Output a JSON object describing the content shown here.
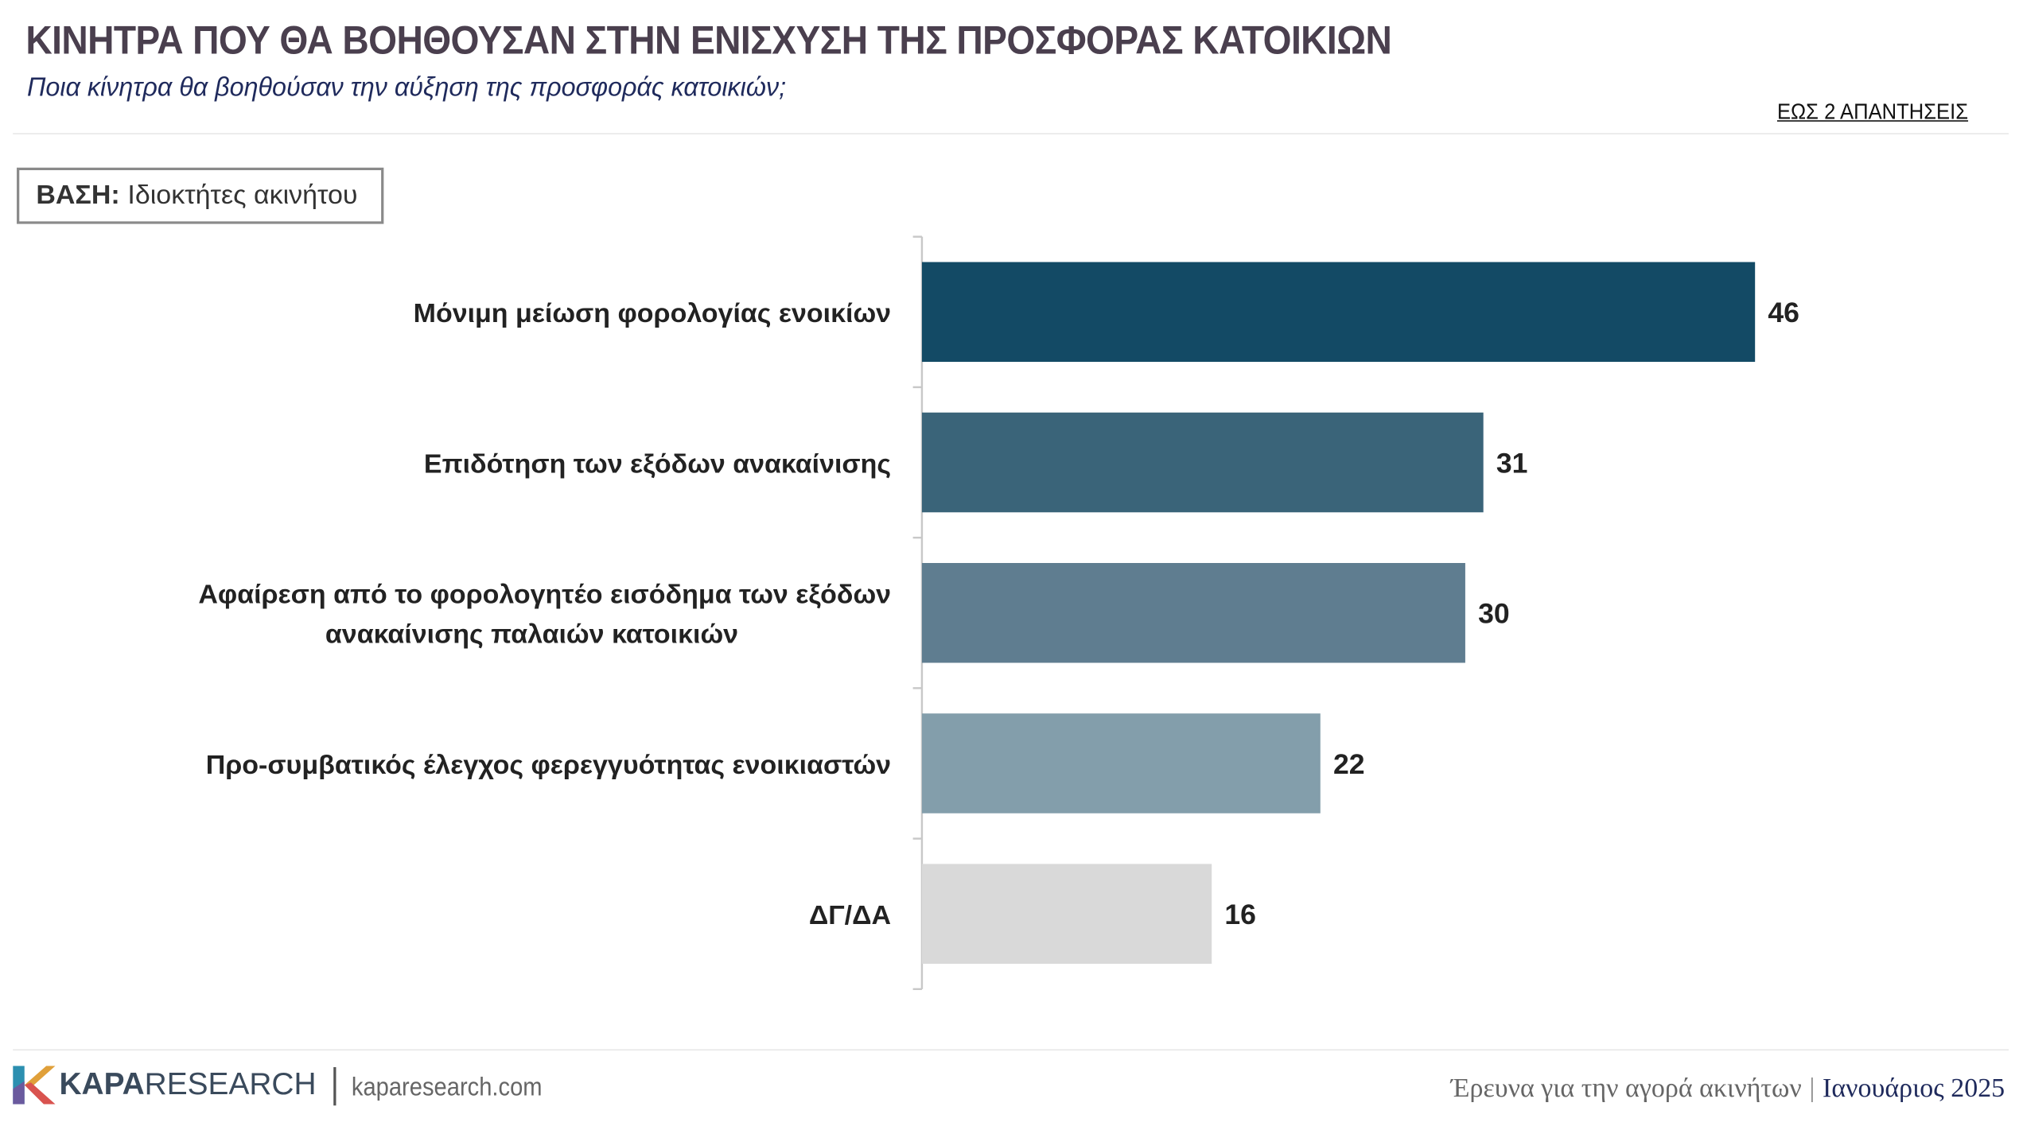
{
  "header": {
    "title": "ΚΙΝΗΤΡΑ ΠΟΥ ΘΑ ΒΟΗΘΟΥΣΑΝ ΣΤΗΝ ΕΝΙΣΧΥΣΗ ΤΗΣ ΠΡΟΣΦΟΡΑΣ ΚΑΤΟΙΚΙΩΝ",
    "subtitle": "Ποια κίνητρα θα βοηθούσαν την αύξηση της προσφοράς κατοικιών;",
    "answer_note": "ΕΩΣ 2 ΑΠΑΝΤΗΣΕΙΣ"
  },
  "base": {
    "label": "ΒΑΣΗ:",
    "value": "Ιδιοκτήτες ακινήτου"
  },
  "chart_data": {
    "type": "bar",
    "orientation": "horizontal",
    "categories": [
      "Μόνιμη μείωση φορολογίας ενοικίων",
      "Επιδότηση των εξόδων ανακαίνισης",
      "Αφαίρεση από το φορολογητέο εισόδημα των εξόδων ανακαίνισης  παλαιών κατοικιών",
      "Προ-συμβατικός έλεγχος φερεγγυότητας ενοικιαστών",
      "ΔΓ/ΔΑ"
    ],
    "category_lines": [
      [
        "Μόνιμη μείωση φορολογίας ενοικίων"
      ],
      [
        "Επιδότηση των εξόδων ανακαίνισης"
      ],
      [
        "Αφαίρεση από το φορολογητέο εισόδημα των εξόδων",
        "ανακαίνισης  παλαιών κατοικιών"
      ],
      [
        "Προ-συμβατικός έλεγχος φερεγγυότητας ενοικιαστών"
      ],
      [
        "ΔΓ/ΔΑ"
      ]
    ],
    "values": [
      46,
      31,
      30,
      22,
      16
    ],
    "colors": [
      "#134a65",
      "#3a6479",
      "#5f7d90",
      "#839eab",
      "#d9d9d9"
    ],
    "xlim": [
      0,
      55
    ],
    "data_labels": true,
    "grid": false,
    "legend": "none"
  },
  "footer": {
    "brand_bold": "KAPA",
    "brand_rest": "RESEARCH",
    "website": "kaparesearch.com",
    "survey_name": "Έρευνα για την αγορά ακινήτων",
    "divider": "|",
    "date": "Ιανουάριος 2025"
  },
  "colors": {
    "title": "#4a3f4e",
    "subtitle": "#1f2a5c",
    "brand_text": "#3a4a5c"
  }
}
